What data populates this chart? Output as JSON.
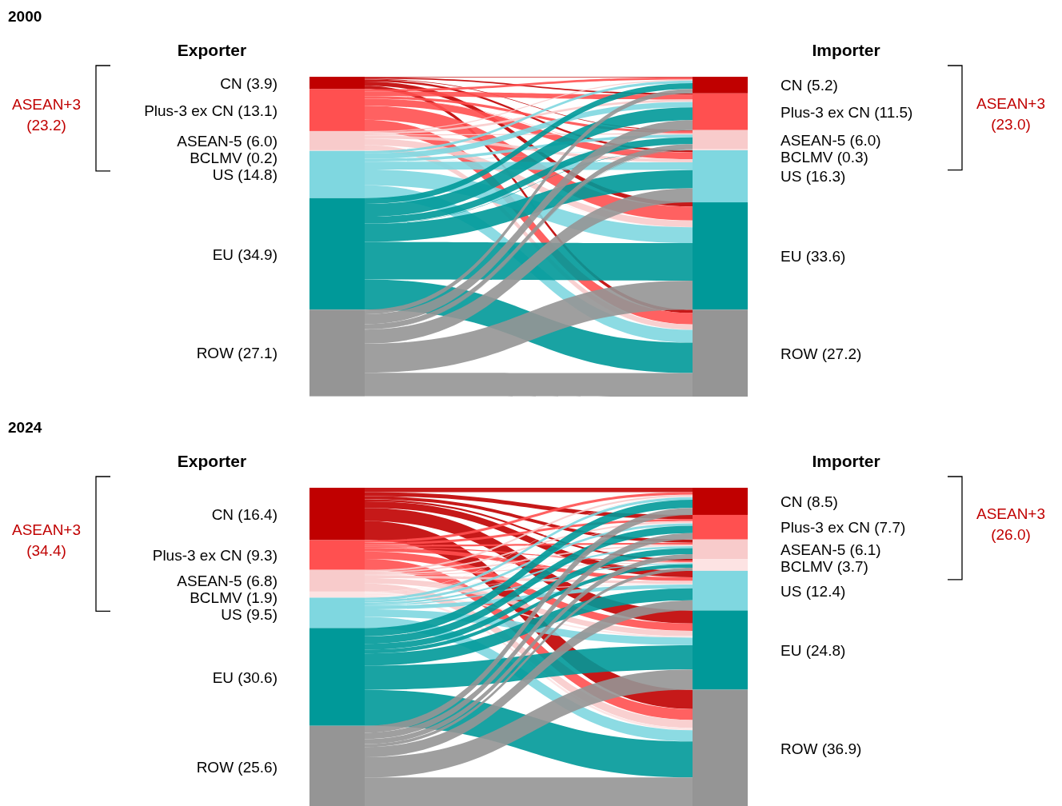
{
  "chart_data": [
    {
      "type": "other",
      "title": "2000",
      "categories": [
        "CN",
        "Plus-3 ex CN",
        "ASEAN-5",
        "BCLMV",
        "US",
        "EU",
        "ROW"
      ],
      "colors": [
        "#c00000",
        "#ff5050",
        "#f8cbcb",
        "#fde3e3",
        "#7fd7e0",
        "#009999",
        "#959595"
      ],
      "series": [
        {
          "name": "Exporter",
          "values": [
            3.9,
            13.1,
            6.0,
            0.2,
            14.8,
            34.9,
            27.1
          ],
          "value_labels": [
            "(3.9)",
            "(13.1)",
            "(6.0)",
            "(0.2)",
            "(14.8)",
            "(34.9)",
            "(27.1)"
          ]
        },
        {
          "name": "Importer",
          "values": [
            5.2,
            11.5,
            6.0,
            0.3,
            16.3,
            33.6,
            27.2
          ],
          "value_labels": [
            "(5.2)",
            "(11.5)",
            "(6.0)",
            "(0.3)",
            "(16.3)",
            "(33.6)",
            "(27.2)"
          ]
        }
      ],
      "annotations": [
        "ASEAN+3 (23.2)",
        "ASEAN+3 (23.0)"
      ]
    },
    {
      "type": "other",
      "title": "2024",
      "categories": [
        "CN",
        "Plus-3 ex CN",
        "ASEAN-5",
        "BCLMV",
        "US",
        "EU",
        "ROW"
      ],
      "colors": [
        "#c00000",
        "#ff5050",
        "#f8cbcb",
        "#fde3e3",
        "#7fd7e0",
        "#009999",
        "#959595"
      ],
      "series": [
        {
          "name": "Exporter",
          "values": [
            16.4,
            9.3,
            6.8,
            1.9,
            9.5,
            30.6,
            25.6
          ],
          "value_labels": [
            "(16.4)",
            "(9.3)",
            "(6.8)",
            "(1.9)",
            "(9.5)",
            "(30.6)",
            "(25.6)"
          ]
        },
        {
          "name": "Importer",
          "values": [
            8.5,
            7.7,
            6.1,
            3.7,
            12.4,
            24.8,
            36.9
          ],
          "value_labels": [
            "(8.5)",
            "(7.7)",
            "(6.1)",
            "(3.7)",
            "(12.4)",
            "(24.8)",
            "(36.9)"
          ]
        }
      ],
      "annotations": [
        "ASEAN+3 (34.4)",
        "ASEAN+3 (26.0)"
      ]
    }
  ]
}
